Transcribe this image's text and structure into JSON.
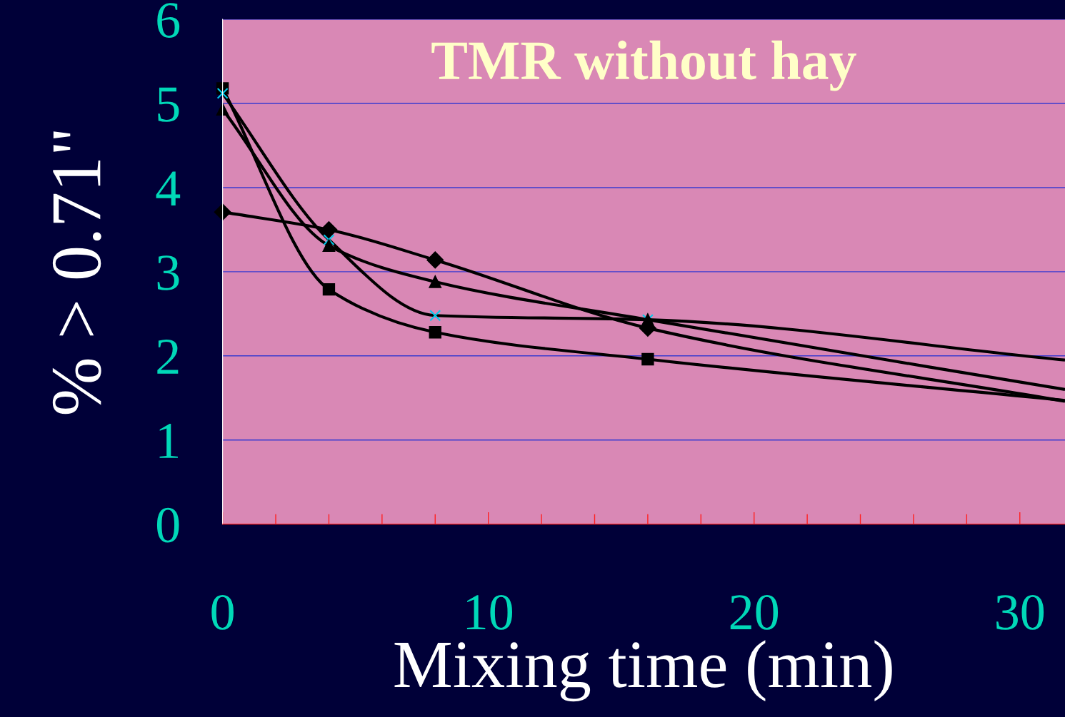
{
  "chart_data": {
    "type": "line",
    "title": "TMR without hay",
    "xlabel": "Mixing time (min)",
    "ylabel": "% > 0.71\"",
    "xlim": [
      0,
      31.7
    ],
    "ylim": [
      0,
      6
    ],
    "xticks": [
      0,
      {
        "value": 2,
        "label": null
      },
      {
        "value": 4,
        "label": null
      },
      {
        "value": 6,
        "label": null
      },
      {
        "value": 8,
        "label": null
      },
      10,
      {
        "value": 12,
        "label": null
      },
      {
        "value": 14,
        "label": null
      },
      {
        "value": 16,
        "label": null
      },
      {
        "value": 18,
        "label": null
      },
      20,
      {
        "value": 22,
        "label": null
      },
      {
        "value": 24,
        "label": null
      },
      {
        "value": 26,
        "label": null
      },
      {
        "value": 28,
        "label": null
      },
      30
    ],
    "yticks": [
      0,
      1,
      2,
      3,
      4,
      5,
      6
    ],
    "grid": "y",
    "legend": false,
    "series": [
      {
        "color": "#000000",
        "marker": "square",
        "x": [
          0,
          4,
          8,
          16,
          31.7
        ],
        "values": [
          5.18,
          2.79,
          2.28,
          1.96,
          1.47
        ]
      },
      {
        "color": "#000000",
        "marker": "cross",
        "x": [
          0,
          4,
          8,
          16,
          31.7
        ],
        "values": [
          5.12,
          3.38,
          2.48,
          2.43,
          1.95
        ]
      },
      {
        "color": "#000000",
        "marker": "triangle",
        "x": [
          0,
          4,
          8,
          16,
          31.7
        ],
        "values": [
          4.93,
          3.31,
          2.88,
          2.43,
          1.6
        ]
      },
      {
        "color": "#000000",
        "marker": "diamond",
        "x": [
          0,
          4,
          8,
          16,
          31.7
        ],
        "values": [
          3.71,
          3.5,
          3.14,
          2.33,
          1.46
        ]
      }
    ]
  }
}
